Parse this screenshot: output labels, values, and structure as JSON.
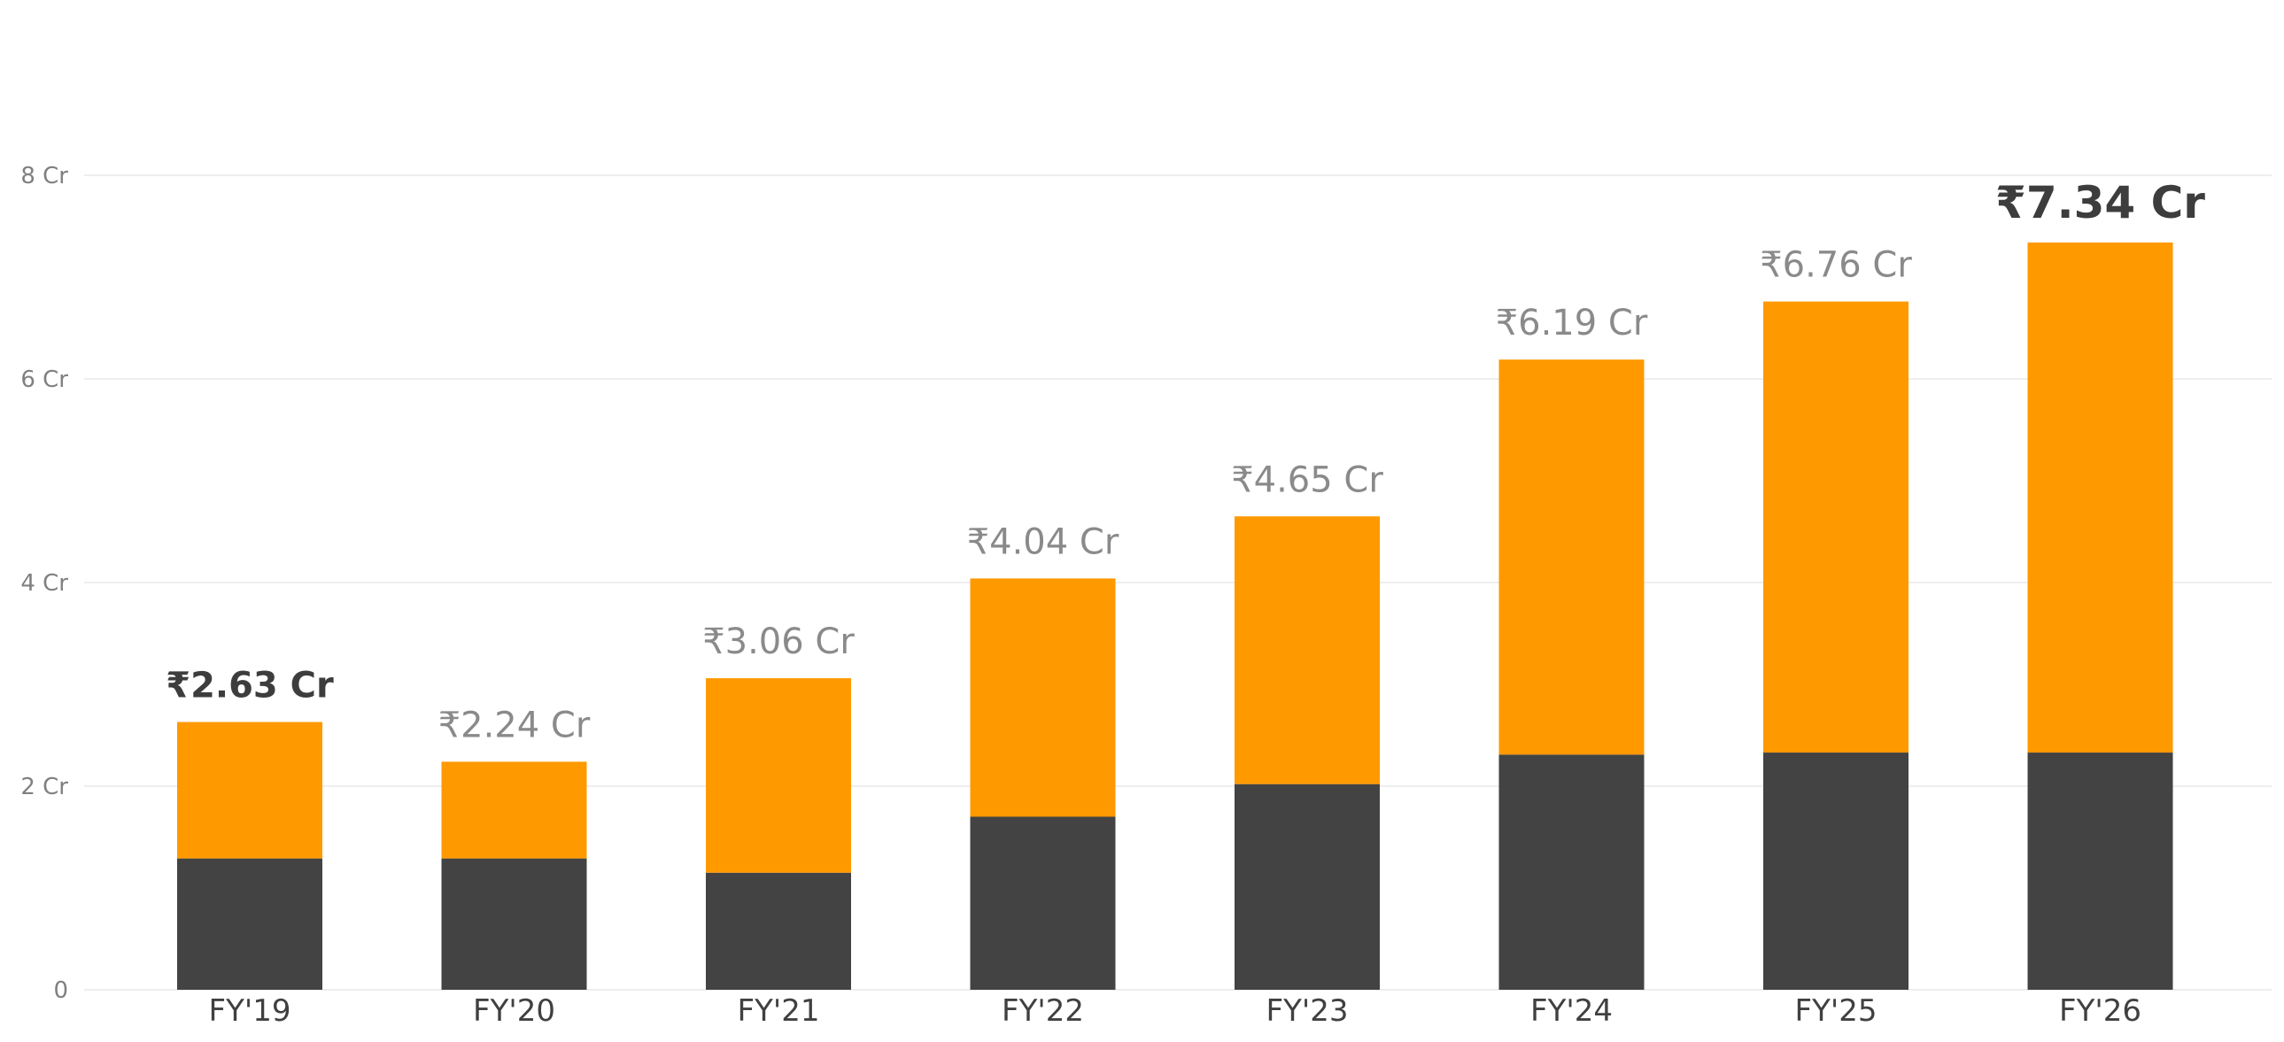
{
  "chart_data": {
    "type": "bar",
    "stacked": true,
    "categories": [
      "FY'19",
      "FY'20",
      "FY'21",
      "FY'22",
      "FY'23",
      "FY'24",
      "FY'25",
      "FY'26"
    ],
    "series": [
      {
        "values": [
          1.29,
          1.29,
          1.15,
          1.7,
          2.02,
          2.31,
          2.33,
          2.33
        ],
        "color": "#434343"
      },
      {
        "values": [
          1.34,
          0.95,
          1.91,
          2.34,
          2.63,
          3.88,
          4.43,
          5.01
        ],
        "color": "#FF9900"
      }
    ],
    "totals": [
      2.63,
      2.24,
      3.06,
      4.04,
      4.65,
      6.19,
      6.76,
      7.34
    ],
    "total_labels": [
      "₹2.63 Cr",
      "₹2.24 Cr",
      "₹3.06 Cr",
      "₹4.04 Cr",
      "₹4.65 Cr",
      "₹6.19 Cr",
      "₹6.76 Cr",
      "₹7.34 Cr"
    ],
    "highlighted": [
      "FY'19",
      "FY'26"
    ],
    "yticks": [
      0,
      2,
      4,
      6,
      8
    ],
    "ytick_labels": [
      "0",
      "2 Cr",
      "4 Cr",
      "6 Cr",
      "8 Cr"
    ],
    "ylim": [
      0,
      9
    ],
    "grid": true,
    "title": "",
    "xlabel": "",
    "ylabel": ""
  }
}
